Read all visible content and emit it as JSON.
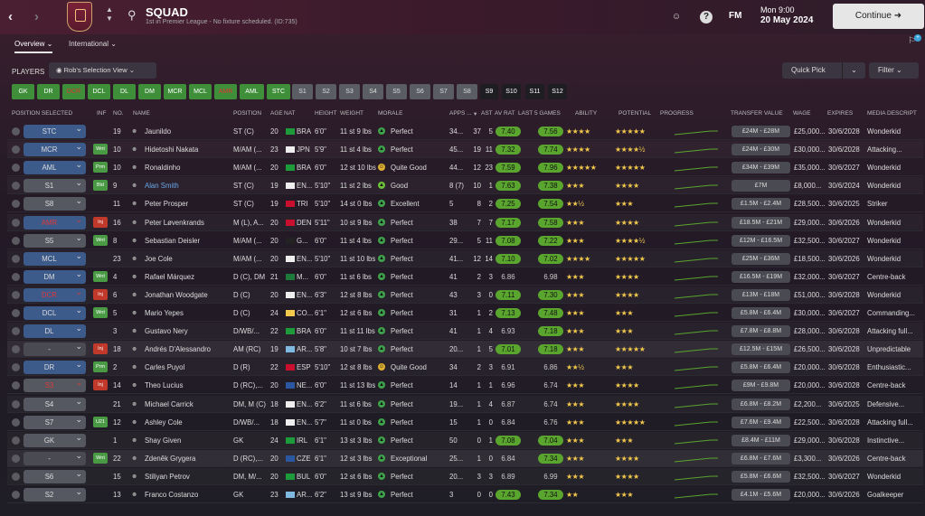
{
  "header": {
    "back": "‹",
    "fwd": "›",
    "title": "SQUAD",
    "subtitle": "1st in Premier League - No fixture scheduled. (ID:735)",
    "fm": "FM",
    "time": "Mon 9:00",
    "date": "20 May 2024",
    "continue": "Continue"
  },
  "tabs": [
    {
      "label": "Overview ⌄"
    },
    {
      "label": "International ⌄"
    }
  ],
  "players_label": "PLAYERS",
  "view_label": "Rob's Selection View ⌄",
  "quick_pick": "Quick Pick",
  "filter": "Filter ⌄",
  "pos_filters": [
    "GK",
    "DR",
    "DCR",
    "DCL",
    "DL",
    "DM",
    "MCR",
    "MCL",
    "AMR",
    "AML",
    "STC",
    "S1",
    "S2",
    "S3",
    "S4",
    "S5",
    "S6",
    "S7",
    "S8",
    "S9",
    "S10",
    "S11",
    "S12"
  ],
  "columns": {
    "position_selected": "POSITION SELECTED",
    "inf": "INF",
    "no": "NO.",
    "name": "NAME",
    "position": "POSITION",
    "age": "AGE",
    "nat": "NAT",
    "height": "HEIGHT",
    "weight": "WEIGHT",
    "morale": "MORALE",
    "apps": "APPS ...",
    "gls": "▾",
    "ast": "AST",
    "avrat": "AV RAT",
    "last5": "LAST 5 GAMES",
    "ability": "ABILITY",
    "potential": "POTENTIAL",
    "progress": "PROGRESS",
    "transfer": "TRANSFER VALUE",
    "wage": "WAGE",
    "expires": "EXPIRES",
    "desc": "MEDIA DESCRIPT"
  },
  "rows": [
    {
      "sel": "STC",
      "inf": "",
      "no": "19",
      "name": "Jaunildo",
      "pos": "ST (C)",
      "age": "20",
      "nat": "BRA",
      "height": "6'0\"",
      "weight": "11 st 9 lbs",
      "morale": "Perfect",
      "apps": "34...",
      "gls": "37",
      "ast": "5",
      "avr": "7.40",
      "l5": "7.56",
      "abil": "★★★★",
      "pot": "★★★★★",
      "tv": "£24M - £28M",
      "wage": "£25,000...",
      "exp": "30/6/2028",
      "desc": "Wonderkid"
    },
    {
      "sel": "MCR",
      "inf": "Wnt",
      "no": "10",
      "name": "Hidetoshi Nakata",
      "pos": "M/AM (...",
      "age": "23",
      "nat": "JPN",
      "height": "5'9\"",
      "weight": "11 st 4 lbs",
      "morale": "Perfect",
      "apps": "45...",
      "gls": "19",
      "ast": "11",
      "avr": "7.32",
      "l5": "7.74",
      "abil": "★★★★",
      "pot": "★★★★½",
      "tv": "£24M - £30M",
      "wage": "£30,000...",
      "exp": "30/6/2028",
      "desc": "Attacking..."
    },
    {
      "sel": "AML",
      "inf": "Prm",
      "no": "10",
      "name": "Ronaldinho",
      "pos": "M/AM (...",
      "age": "20",
      "nat": "BRA",
      "height": "6'0\"",
      "weight": "12 st 10 lbs",
      "morale": "Quite Good",
      "apps": "44...",
      "gls": "12",
      "ast": "23",
      "avr": "7.59",
      "l5": "7.96",
      "abil": "★★★★★",
      "pot": "★★★★★",
      "tv": "£34M - £39M",
      "wage": "£35,000...",
      "exp": "30/6/2027",
      "desc": "Wonderkid"
    },
    {
      "sel": "S1",
      "inf": "Bld",
      "no": "9",
      "name": "Alan Smith",
      "pos": "ST (C)",
      "age": "19",
      "nat": "EN...",
      "height": "5'10\"",
      "weight": "11 st 2 lbs",
      "morale": "Good",
      "apps": "8 (7)",
      "gls": "10",
      "ast": "1",
      "avr": "7.63",
      "l5": "7.38",
      "abil": "★★★",
      "pot": "★★★★",
      "tv": "£7M",
      "wage": "£8,000...",
      "exp": "30/6/2024",
      "desc": "Wonderkid"
    },
    {
      "sel": "S8",
      "inf": "",
      "no": "11",
      "name": "Peter Prosper",
      "pos": "ST (C)",
      "age": "19",
      "nat": "TRI",
      "height": "5'10\"",
      "weight": "14 st 0 lbs",
      "morale": "Excellent",
      "apps": "5",
      "gls": "8",
      "ast": "2",
      "avr": "7.25",
      "l5": "7.54",
      "abil": "★★½",
      "pot": "★★★",
      "tv": "£1.5M - £2.4M",
      "wage": "£28,500...",
      "exp": "30/6/2025",
      "desc": "Striker"
    },
    {
      "sel": "AMR",
      "inf": "Inj",
      "no": "16",
      "name": "Peter Løvenkrands",
      "pos": "M (L), A...",
      "age": "20",
      "nat": "DEN",
      "height": "5'11\"",
      "weight": "10 st 9 lbs",
      "morale": "Perfect",
      "apps": "38",
      "gls": "7",
      "ast": "7",
      "avr": "7.17",
      "l5": "7.58",
      "abil": "★★★",
      "pot": "★★★★",
      "tv": "£18.5M - £21M",
      "wage": "£29,000...",
      "exp": "30/6/2026",
      "desc": "Wonderkid"
    },
    {
      "sel": "S5",
      "inf": "Wnt",
      "no": "8",
      "name": "Sebastian Deisler",
      "pos": "M/AM (...",
      "age": "20",
      "nat": "G...",
      "height": "6'0\"",
      "weight": "11 st 4 lbs",
      "morale": "Perfect",
      "apps": "29...",
      "gls": "5",
      "ast": "11",
      "avr": "7.08",
      "l5": "7.22",
      "abil": "★★★",
      "pot": "★★★★½",
      "tv": "£12M - £16.5M",
      "wage": "£32,500...",
      "exp": "30/6/2027",
      "desc": "Wonderkid"
    },
    {
      "sel": "MCL",
      "inf": "",
      "no": "23",
      "name": "Joe Cole",
      "pos": "M/AM (...",
      "age": "20",
      "nat": "EN...",
      "height": "5'10\"",
      "weight": "11 st 10 lbs",
      "morale": "Perfect",
      "apps": "41...",
      "gls": "12",
      "ast": "14",
      "avr": "7.10",
      "l5": "7.02",
      "abil": "★★★★",
      "pot": "★★★★★",
      "tv": "£25M - £36M",
      "wage": "£18,500...",
      "exp": "30/6/2026",
      "desc": "Wonderkid"
    },
    {
      "sel": "DM",
      "inf": "Wnt",
      "no": "4",
      "name": "Rafael Márquez",
      "pos": "D (C), DM",
      "age": "21",
      "nat": "M...",
      "height": "6'0\"",
      "weight": "11 st 6 lbs",
      "morale": "Perfect",
      "apps": "41",
      "gls": "2",
      "ast": "3",
      "avr": "6.86",
      "l5": "6.98",
      "abil": "★★★",
      "pot": "★★★★",
      "tv": "£16.5M - £19M",
      "wage": "£32,000...",
      "exp": "30/6/2027",
      "desc": "Centre-back"
    },
    {
      "sel": "DCR",
      "inf": "Inj",
      "no": "6",
      "name": "Jonathan Woodgate",
      "pos": "D (C)",
      "age": "20",
      "nat": "EN...",
      "height": "6'3\"",
      "weight": "12 st 8 lbs",
      "morale": "Perfect",
      "apps": "43",
      "gls": "3",
      "ast": "0",
      "avr": "7.11",
      "l5": "7.30",
      "abil": "★★★",
      "pot": "★★★★",
      "tv": "£13M - £18M",
      "wage": "£51,000...",
      "exp": "30/6/2028",
      "desc": "Wonderkid"
    },
    {
      "sel": "DCL",
      "inf": "Wnt",
      "no": "5",
      "name": "Mario Yepes",
      "pos": "D (C)",
      "age": "24",
      "nat": "CO...",
      "height": "6'1\"",
      "weight": "12 st 6 lbs",
      "morale": "Perfect",
      "apps": "31",
      "gls": "1",
      "ast": "2",
      "avr": "7.13",
      "l5": "7.48",
      "abil": "★★★",
      "pot": "★★★",
      "tv": "£5.8M - £6.4M",
      "wage": "£30,000...",
      "exp": "30/6/2027",
      "desc": "Commanding..."
    },
    {
      "sel": "DL",
      "inf": "",
      "no": "3",
      "name": "Gustavo Nery",
      "pos": "D/WB/...",
      "age": "22",
      "nat": "BRA",
      "height": "6'0\"",
      "weight": "11 st 11 lbs",
      "morale": "Perfect",
      "apps": "41",
      "gls": "1",
      "ast": "4",
      "avr": "6.93",
      "l5": "7.18",
      "abil": "★★★",
      "pot": "★★★",
      "tv": "£7.8M - £8.8M",
      "wage": "£28,000...",
      "exp": "30/6/2028",
      "desc": "Attacking full..."
    },
    {
      "sel": "-",
      "inf": "Inj",
      "no": "18",
      "name": "Andrés D'Alessandro",
      "pos": "AM (RC)",
      "age": "19",
      "nat": "AR...",
      "height": "5'8\"",
      "weight": "10 st 7 lbs",
      "morale": "Perfect",
      "apps": "20...",
      "gls": "1",
      "ast": "5",
      "avr": "7.01",
      "l5": "7.18",
      "abil": "★★★",
      "pot": "★★★★★",
      "tv": "£12.5M - £15M",
      "wage": "£26,500...",
      "exp": "30/6/2028",
      "desc": "Unpredictable"
    },
    {
      "sel": "DR",
      "inf": "Prm",
      "no": "2",
      "name": "Carles Puyol",
      "pos": "D (R)",
      "age": "22",
      "nat": "ESP",
      "height": "5'10\"",
      "weight": "12 st 8 lbs",
      "morale": "Quite Good",
      "apps": "34",
      "gls": "2",
      "ast": "3",
      "avr": "6.91",
      "l5": "6.86",
      "abil": "★★½",
      "pot": "★★★",
      "tv": "£5.8M - £6.4M",
      "wage": "£20,000...",
      "exp": "30/6/2028",
      "desc": "Enthusiastic..."
    },
    {
      "sel": "S3",
      "inf": "Inj",
      "no": "14",
      "name": "Theo Lucius",
      "pos": "D (RC),...",
      "age": "20",
      "nat": "NE...",
      "height": "6'0\"",
      "weight": "11 st 13 lbs",
      "morale": "Perfect",
      "apps": "14",
      "gls": "1",
      "ast": "1",
      "avr": "6.96",
      "l5": "6.74",
      "abil": "★★★",
      "pot": "★★★★",
      "tv": "£9M - £9.8M",
      "wage": "£20,000...",
      "exp": "30/6/2028",
      "desc": "Centre-back"
    },
    {
      "sel": "S4",
      "inf": "",
      "no": "21",
      "name": "Michael Carrick",
      "pos": "DM, M (C)",
      "age": "18",
      "nat": "EN...",
      "height": "6'2\"",
      "weight": "11 st 6 lbs",
      "morale": "Perfect",
      "apps": "19...",
      "gls": "1",
      "ast": "4",
      "avr": "6.87",
      "l5": "6.74",
      "abil": "★★★",
      "pot": "★★★★",
      "tv": "£6.8M - £8.2M",
      "wage": "£2,200...",
      "exp": "30/6/2025",
      "desc": "Defensive..."
    },
    {
      "sel": "S7",
      "inf": "U21",
      "no": "12",
      "name": "Ashley Cole",
      "pos": "D/WB/...",
      "age": "18",
      "nat": "EN...",
      "height": "5'7\"",
      "weight": "11 st 0 lbs",
      "morale": "Perfect",
      "apps": "15",
      "gls": "1",
      "ast": "0",
      "avr": "6.84",
      "l5": "6.76",
      "abil": "★★★",
      "pot": "★★★★★",
      "tv": "£7.6M - £9.4M",
      "wage": "£22,500...",
      "exp": "30/6/2028",
      "desc": "Attacking full..."
    },
    {
      "sel": "GK",
      "inf": "",
      "no": "1",
      "name": "Shay Given",
      "pos": "GK",
      "age": "24",
      "nat": "IRL",
      "height": "6'1\"",
      "weight": "13 st 3 lbs",
      "morale": "Perfect",
      "apps": "50",
      "gls": "0",
      "ast": "1",
      "avr": "7.08",
      "l5": "7.04",
      "abil": "★★★",
      "pot": "★★★",
      "tv": "£8.4M - £11M",
      "wage": "£29,000...",
      "exp": "30/6/2028",
      "desc": "Instinctive..."
    },
    {
      "sel": "-",
      "inf": "Wnt",
      "no": "22",
      "name": "Zdeněk Grygera",
      "pos": "D (RC),...",
      "age": "20",
      "nat": "CZE",
      "height": "6'1\"",
      "weight": "12 st 3 lbs",
      "morale": "Exceptional",
      "apps": "25...",
      "gls": "1",
      "ast": "0",
      "avr": "6.84",
      "l5": "7.34",
      "abil": "★★★",
      "pot": "★★★★",
      "tv": "£6.8M - £7.6M",
      "wage": "£3,300...",
      "exp": "30/6/2026",
      "desc": "Centre-back"
    },
    {
      "sel": "S6",
      "inf": "",
      "no": "15",
      "name": "Stiliyan Petrov",
      "pos": "DM, M/...",
      "age": "20",
      "nat": "BUL",
      "height": "6'0\"",
      "weight": "12 st 6 lbs",
      "morale": "Perfect",
      "apps": "20...",
      "gls": "3",
      "ast": "3",
      "avr": "6.89",
      "l5": "6.99",
      "abil": "★★★",
      "pot": "★★★★",
      "tv": "£5.8M - £6.6M",
      "wage": "£32,500...",
      "exp": "30/6/2027",
      "desc": "Wonderkid"
    },
    {
      "sel": "S2",
      "inf": "",
      "no": "13",
      "name": "Franco Costanzo",
      "pos": "GK",
      "age": "23",
      "nat": "AR...",
      "height": "6'2\"",
      "weight": "13 st 9 lbs",
      "morale": "Perfect",
      "apps": "3",
      "gls": "0",
      "ast": "0",
      "avr": "7.43",
      "l5": "7.34",
      "abil": "★★",
      "pot": "★★★",
      "tv": "£4.1M - £5.6M",
      "wage": "£20,000...",
      "exp": "30/6/2026",
      "desc": "Goalkeeper"
    }
  ]
}
